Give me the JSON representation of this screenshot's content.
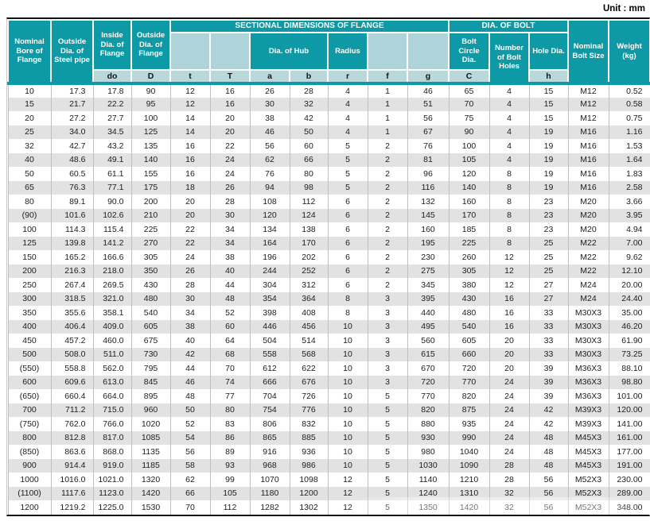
{
  "unit_label": "Unit : mm",
  "colors": {
    "header_teal": "#0d9aa6",
    "header_light_teal": "#aed3d8",
    "label_row_bg": "#b9d8dc",
    "alt_row_gray": "#e2e2e2",
    "border_black": "#121212"
  },
  "table": {
    "header": {
      "nominal_bore": "Nominal Bore of Flange",
      "pipe_od": "Outside Dia. of Steel pipe",
      "inside_dia": "Inside Dia. of Flange",
      "outside_dia": "Outside Dia. of Flange",
      "sectional": "SECTIONAL DIMENSIONS OF FLANGE",
      "dia_of_hub": "Dia. of Hub",
      "radius": "Radius",
      "dia_of_bolt": "DIA. OF BOLT",
      "bolt_circle": "Bolt Circle Dia.",
      "num_holes": "Number of Bolt Holes",
      "hole_dia": "Hole Dia.",
      "nominal_bolt": "Nominal Bolt Size",
      "weight": "Weight (kg)",
      "sub": {
        "do_": "do",
        "D": "D",
        "t": "t",
        "T": "T",
        "a": "a",
        "b": "b",
        "r": "r",
        "f": "f",
        "g": "g",
        "C": "C",
        "h": "h"
      }
    },
    "rows": [
      [
        "10",
        "17.3",
        "17.8",
        "90",
        "12",
        "16",
        "26",
        "28",
        "4",
        "1",
        "46",
        "65",
        "4",
        "15",
        "M12",
        "0.52"
      ],
      [
        "15",
        "21.7",
        "22.2",
        "95",
        "12",
        "16",
        "30",
        "32",
        "4",
        "1",
        "51",
        "70",
        "4",
        "15",
        "M12",
        "0.58"
      ],
      [
        "20",
        "27.2",
        "27.7",
        "100",
        "14",
        "20",
        "38",
        "42",
        "4",
        "1",
        "56",
        "75",
        "4",
        "15",
        "M12",
        "0.75"
      ],
      [
        "25",
        "34.0",
        "34.5",
        "125",
        "14",
        "20",
        "46",
        "50",
        "4",
        "1",
        "67",
        "90",
        "4",
        "19",
        "M16",
        "1.16"
      ],
      [
        "32",
        "42.7",
        "43.2",
        "135",
        "16",
        "22",
        "56",
        "60",
        "5",
        "2",
        "76",
        "100",
        "4",
        "19",
        "M16",
        "1.53"
      ],
      [
        "40",
        "48.6",
        "49.1",
        "140",
        "16",
        "24",
        "62",
        "66",
        "5",
        "2",
        "81",
        "105",
        "4",
        "19",
        "M16",
        "1.64"
      ],
      [
        "50",
        "60.5",
        "61.1",
        "155",
        "16",
        "24",
        "76",
        "80",
        "5",
        "2",
        "96",
        "120",
        "8",
        "19",
        "M16",
        "1.83"
      ],
      [
        "65",
        "76.3",
        "77.1",
        "175",
        "18",
        "26",
        "94",
        "98",
        "5",
        "2",
        "116",
        "140",
        "8",
        "19",
        "M16",
        "2.58"
      ],
      [
        "80",
        "89.1",
        "90.0",
        "200",
        "20",
        "28",
        "108",
        "112",
        "6",
        "2",
        "132",
        "160",
        "8",
        "23",
        "M20",
        "3.66"
      ],
      [
        "(90)",
        "101.6",
        "102.6",
        "210",
        "20",
        "30",
        "120",
        "124",
        "6",
        "2",
        "145",
        "170",
        "8",
        "23",
        "M20",
        "3.95"
      ],
      [
        "100",
        "114.3",
        "115.4",
        "225",
        "22",
        "34",
        "134",
        "138",
        "6",
        "2",
        "160",
        "185",
        "8",
        "23",
        "M20",
        "4.94"
      ],
      [
        "125",
        "139.8",
        "141.2",
        "270",
        "22",
        "34",
        "164",
        "170",
        "6",
        "2",
        "195",
        "225",
        "8",
        "25",
        "M22",
        "7.00"
      ],
      [
        "150",
        "165.2",
        "166.6",
        "305",
        "24",
        "38",
        "196",
        "202",
        "6",
        "2",
        "230",
        "260",
        "12",
        "25",
        "M22",
        "9.62"
      ],
      [
        "200",
        "216.3",
        "218.0",
        "350",
        "26",
        "40",
        "244",
        "252",
        "6",
        "2",
        "275",
        "305",
        "12",
        "25",
        "M22",
        "12.10"
      ],
      [
        "250",
        "267.4",
        "269.5",
        "430",
        "28",
        "44",
        "304",
        "312",
        "6",
        "2",
        "345",
        "380",
        "12",
        "27",
        "M24",
        "20.00"
      ],
      [
        "300",
        "318.5",
        "321.0",
        "480",
        "30",
        "48",
        "354",
        "364",
        "8",
        "3",
        "395",
        "430",
        "16",
        "27",
        "M24",
        "24.40"
      ],
      [
        "350",
        "355.6",
        "358.1",
        "540",
        "34",
        "52",
        "398",
        "408",
        "8",
        "3",
        "440",
        "480",
        "16",
        "33",
        "M30X3",
        "35.00"
      ],
      [
        "400",
        "406.4",
        "409.0",
        "605",
        "38",
        "60",
        "446",
        "456",
        "10",
        "3",
        "495",
        "540",
        "16",
        "33",
        "M30X3",
        "46.20"
      ],
      [
        "450",
        "457.2",
        "460.0",
        "675",
        "40",
        "64",
        "504",
        "514",
        "10",
        "3",
        "560",
        "605",
        "20",
        "33",
        "M30X3",
        "61.90"
      ],
      [
        "500",
        "508.0",
        "511.0",
        "730",
        "42",
        "68",
        "558",
        "568",
        "10",
        "3",
        "615",
        "660",
        "20",
        "33",
        "M30X3",
        "73.25"
      ],
      [
        "(550)",
        "558.8",
        "562.0",
        "795",
        "44",
        "70",
        "612",
        "622",
        "10",
        "3",
        "670",
        "720",
        "20",
        "39",
        "M36X3",
        "88.10"
      ],
      [
        "600",
        "609.6",
        "613.0",
        "845",
        "46",
        "74",
        "666",
        "676",
        "10",
        "3",
        "720",
        "770",
        "24",
        "39",
        "M36X3",
        "98.80"
      ],
      [
        "(650)",
        "660.4",
        "664.0",
        "895",
        "48",
        "77",
        "704",
        "726",
        "10",
        "5",
        "770",
        "820",
        "24",
        "39",
        "M36X3",
        "101.00"
      ],
      [
        "700",
        "711.2",
        "715.0",
        "960",
        "50",
        "80",
        "754",
        "776",
        "10",
        "5",
        "820",
        "875",
        "24",
        "42",
        "M39X3",
        "120.00"
      ],
      [
        "(750)",
        "762.0",
        "766.0",
        "1020",
        "52",
        "83",
        "806",
        "832",
        "10",
        "5",
        "880",
        "935",
        "24",
        "42",
        "M39X3",
        "141.00"
      ],
      [
        "800",
        "812.8",
        "817.0",
        "1085",
        "54",
        "86",
        "865",
        "885",
        "10",
        "5",
        "930",
        "990",
        "24",
        "48",
        "M45X3",
        "161.00"
      ],
      [
        "(850)",
        "863.6",
        "868.0",
        "1135",
        "56",
        "89",
        "916",
        "936",
        "10",
        "5",
        "980",
        "1040",
        "24",
        "48",
        "M45X3",
        "177.00"
      ],
      [
        "900",
        "914.4",
        "919.0",
        "1185",
        "58",
        "93",
        "968",
        "986",
        "10",
        "5",
        "1030",
        "1090",
        "28",
        "48",
        "M45X3",
        "191.00"
      ],
      [
        "1000",
        "1016.0",
        "1021.0",
        "1320",
        "62",
        "99",
        "1070",
        "1098",
        "12",
        "5",
        "1140",
        "1210",
        "28",
        "56",
        "M52X3",
        "230.00"
      ],
      [
        "(1100)",
        "1117.6",
        "1123.0",
        "1420",
        "66",
        "105",
        "1180",
        "1200",
        "12",
        "5",
        "1240",
        "1310",
        "32",
        "56",
        "M52X3",
        "289.00"
      ],
      [
        "1200",
        "1219.2",
        "1225.0",
        "1530",
        "70",
        "112",
        "1282",
        "1302",
        "12",
        "5",
        "1350",
        "1420",
        "32",
        "56",
        "M52X3",
        "348.00"
      ]
    ]
  }
}
